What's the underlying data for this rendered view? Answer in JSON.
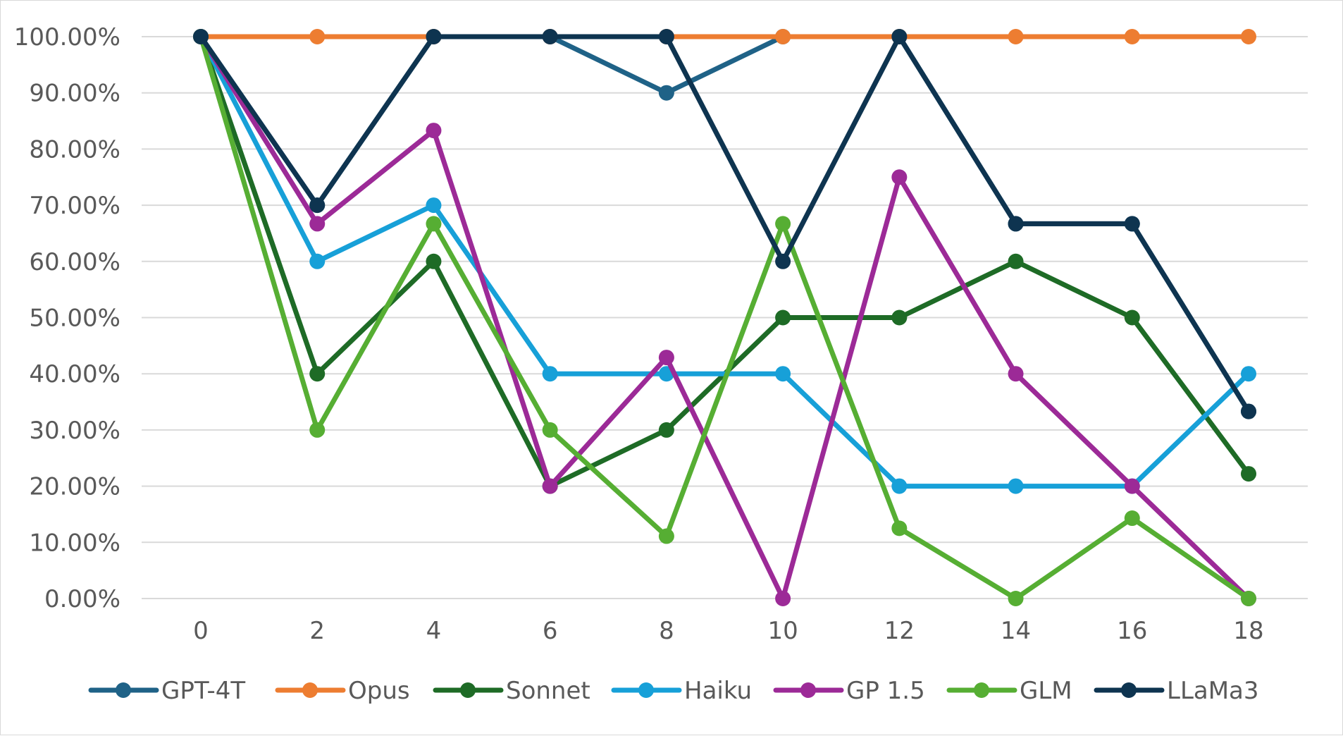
{
  "chart_data": {
    "type": "line",
    "title": "",
    "xlabel": "",
    "ylabel": "",
    "x": [
      0,
      2,
      4,
      6,
      8,
      10,
      12,
      14,
      16,
      18
    ],
    "x_tick_labels": [
      "0",
      "2",
      "4",
      "6",
      "8",
      "10",
      "12",
      "14",
      "16",
      "18"
    ],
    "ylim": [
      0,
      100
    ],
    "y_tick_labels": [
      "0.00%",
      "10.00%",
      "20.00%",
      "30.00%",
      "40.00%",
      "50.00%",
      "60.00%",
      "70.00%",
      "80.00%",
      "90.00%",
      "100.00%"
    ],
    "grid": "horizontal",
    "legend_position": "bottom",
    "series": [
      {
        "name": "GPT-4T",
        "color": "#1f6287",
        "values": [
          100,
          70,
          100,
          100,
          90,
          100,
          100,
          66.7,
          66.7,
          33.3
        ]
      },
      {
        "name": "Opus",
        "color": "#ed7d31",
        "values": [
          100,
          100,
          100,
          100,
          100,
          100,
          100,
          100,
          100,
          100
        ]
      },
      {
        "name": "Sonnet",
        "color": "#1e6b26",
        "values": [
          100,
          40,
          60,
          20,
          30,
          50,
          50,
          60,
          50,
          22.2
        ]
      },
      {
        "name": "Haiku",
        "color": "#17a0d8",
        "values": [
          100,
          60,
          70,
          40,
          40,
          40,
          20,
          20,
          20,
          40
        ]
      },
      {
        "name": "GP 1.5",
        "color": "#9c2a97",
        "values": [
          100,
          66.7,
          83.3,
          20,
          42.9,
          0,
          75,
          40,
          20,
          0
        ]
      },
      {
        "name": "GLM",
        "color": "#56ae33",
        "values": [
          100,
          30,
          66.7,
          30,
          11.1,
          66.7,
          12.5,
          0,
          14.3,
          0
        ]
      },
      {
        "name": "LLaMa3",
        "color": "#0e3450",
        "values": [
          100,
          70,
          100,
          100,
          100,
          60,
          100,
          66.7,
          66.7,
          33.3
        ]
      }
    ]
  }
}
